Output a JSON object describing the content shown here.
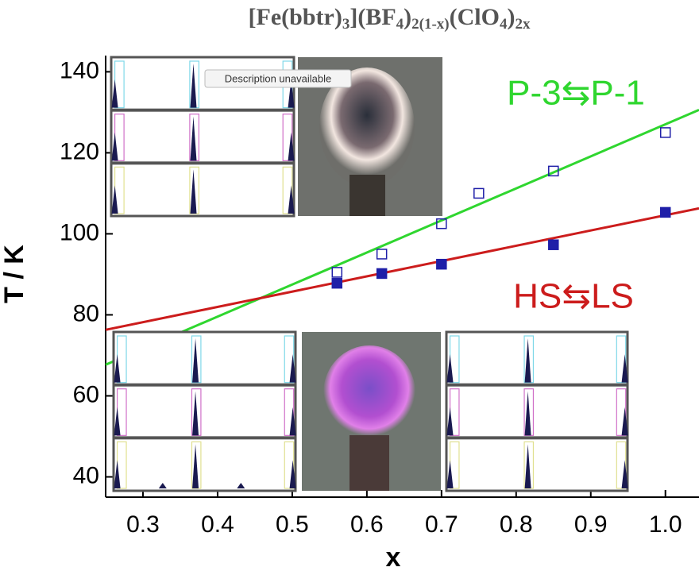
{
  "chart_data": {
    "type": "scatter",
    "title": [
      {
        "text": "[Fe(bbtr)",
        "sub": false
      },
      {
        "text": "3",
        "sub": true
      },
      {
        "text": "](BF",
        "sub": false
      },
      {
        "text": "4",
        "sub": true
      },
      {
        "text": ")",
        "sub": false
      },
      {
        "text": "2(1-x)",
        "sub": true
      },
      {
        "text": "(ClO",
        "sub": false
      },
      {
        "text": "4",
        "sub": true
      },
      {
        "text": ")",
        "sub": false
      },
      {
        "text": "2x",
        "sub": true
      }
    ],
    "xlabel": "x",
    "ylabel": "T / K",
    "xlim": [
      0.25,
      1.045
    ],
    "ylim": [
      35,
      144
    ],
    "xticks": [
      0.3,
      0.4,
      0.5,
      0.6,
      0.7,
      0.8,
      0.9,
      {
        "value": 1,
        "label": "1.0"
      }
    ],
    "yticks": [
      40,
      60,
      80,
      100,
      120,
      140
    ],
    "series": [
      {
        "name": "P-3⇆P-1",
        "color": "#2fd62f",
        "marker": "open-square",
        "marker_color": "#1f1fa8",
        "x": [
          0.56,
          0.62,
          0.7,
          0.75,
          0.85,
          1
        ],
        "values": [
          90.5,
          95,
          102.5,
          110,
          115.5,
          125
        ],
        "fit": {
          "x": [
            0.25,
            1.045
          ],
          "values": [
            67.7,
            130.6
          ]
        }
      },
      {
        "name": "HS⇆LS",
        "color": "#cc1c1c",
        "marker": "filled-square",
        "marker_color": "#1f1fa8",
        "x": [
          0.56,
          0.62,
          0.7,
          0.85,
          1
        ],
        "values": [
          87.8,
          90.2,
          92.5,
          97.3,
          105.3
        ],
        "fit": {
          "x": [
            0.25,
            1.045
          ],
          "values": [
            76.3,
            106.3
          ]
        }
      }
    ]
  },
  "tooltip": "Description unavailable"
}
